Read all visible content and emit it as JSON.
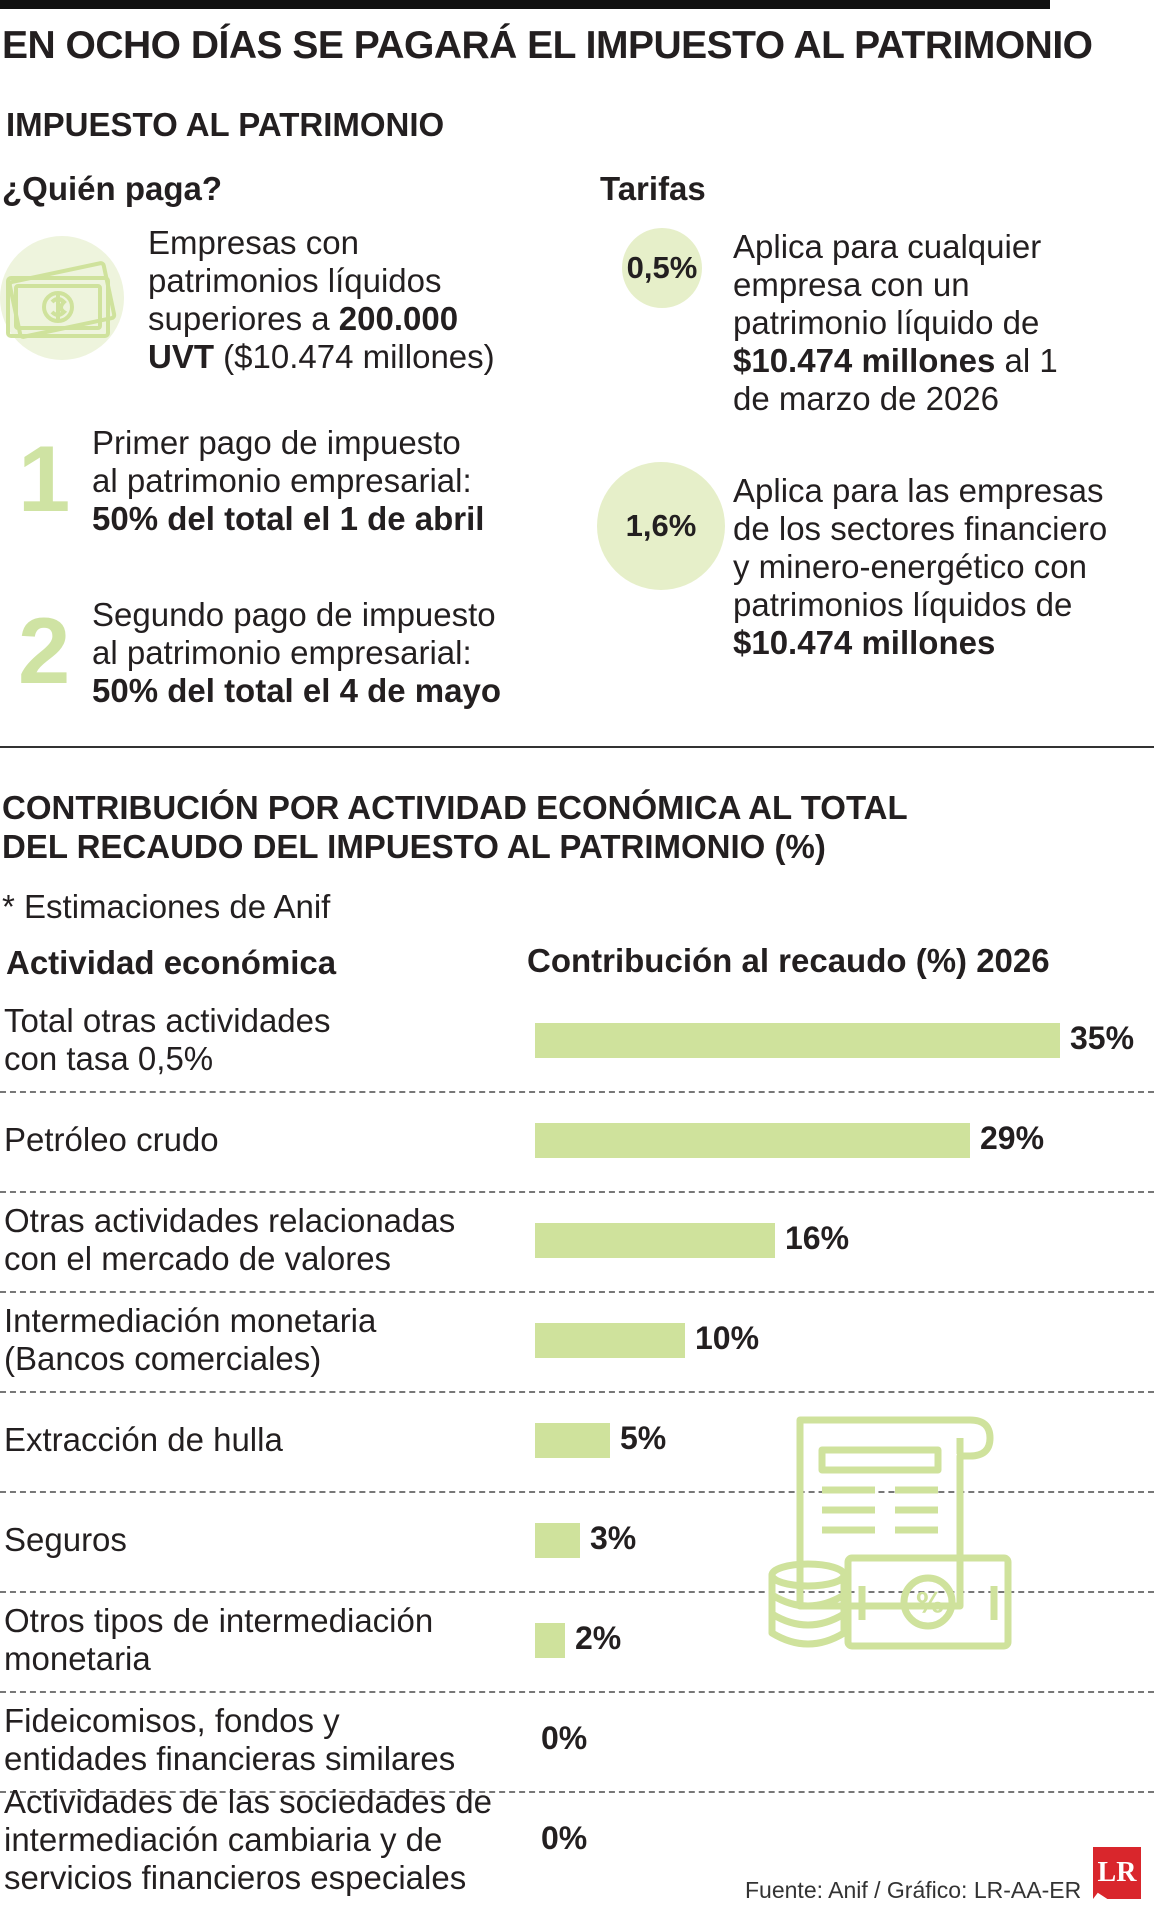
{
  "header": {
    "title": "EN OCHO DÍAS SE PAGARÁ EL IMPUESTO AL PATRIMONIO",
    "subtitle": "IMPUESTO AL PATRIMONIO"
  },
  "quien_paga": {
    "heading": "¿Quién paga?",
    "intro_lines": [
      "Empresas con",
      "patrimonios líquidos"
    ],
    "intro_line3_a": "superiores a ",
    "intro_line3_b": "200.000",
    "intro_line4_a": "UVT",
    "intro_line4_b": " ($10.474 millones)",
    "pago1": {
      "num": "1",
      "line1": "Primer pago de impuesto",
      "line2": "al patrimonio empresarial:",
      "line3": "50% del total el 1 de abril"
    },
    "pago2": {
      "num": "2",
      "line1": "Segundo pago de impuesto",
      "line2": "al patrimonio empresarial:",
      "line3": "50% del total el 4 de mayo"
    }
  },
  "tarifas": {
    "heading": "Tarifas",
    "t1": {
      "rate": "0,5%",
      "l1": "Aplica para cualquier",
      "l2": "empresa con un",
      "l3": "patrimonio líquido de",
      "l4a": "$10.474 millones",
      "l4b": " al 1",
      "l5": "de marzo de 2026"
    },
    "t2": {
      "rate": "1,6%",
      "l1": "Aplica para las empresas",
      "l2": "de los sectores financiero",
      "l3": "y minero-energético con",
      "l4": "patrimonios líquidos de",
      "l5": "$10.474 millones"
    }
  },
  "section2": {
    "title_line1": "CONTRIBUCIÓN POR ACTIVIDAD ECONÓMICA AL TOTAL",
    "title_line2": "DEL RECAUDO DEL IMPUESTO AL PATRIMONIO (%)",
    "note": "* Estimaciones de Anif",
    "col1": "Actividad económica",
    "col2": "Contribución al recaudo (%) 2026"
  },
  "chart_data": {
    "type": "bar",
    "title": "Contribución al recaudo (%) 2026",
    "categories": [
      [
        "Total otras actividades",
        "con tasa 0,5%"
      ],
      [
        "Petróleo crudo"
      ],
      [
        "Otras actividades relacionadas",
        "con el mercado de valores"
      ],
      [
        "Intermediación monetaria",
        "(Bancos comerciales)"
      ],
      [
        "Extracción de hulla"
      ],
      [
        "Seguros"
      ],
      [
        "Otros tipos de intermediación",
        "monetaria"
      ],
      [
        "Fideicomisos, fondos y",
        "entidades financieras similares"
      ],
      [
        "Actividades de las sociedades de",
        "intermediación cambiaria y de",
        "servicios financieros especiales"
      ]
    ],
    "values": [
      35,
      29,
      16,
      10,
      5,
      3,
      2,
      0,
      0
    ],
    "value_labels": [
      "35%",
      "29%",
      "16%",
      "10%",
      "5%",
      "3%",
      "2%",
      "0%",
      "0%"
    ],
    "xlim": [
      0,
      35
    ],
    "bar_color": "#cfe29c"
  },
  "footer": {
    "source": "Fuente: Anif / Gráfico: LR-AA-ER",
    "logo": "LR"
  },
  "colors": {
    "accent_light": "#cfe29c",
    "circle": "#e6efc9",
    "icon_stroke": "#cfe29c"
  },
  "icons": [
    "money-bill-icon",
    "invoice-coins-icon",
    "lr-logo"
  ]
}
